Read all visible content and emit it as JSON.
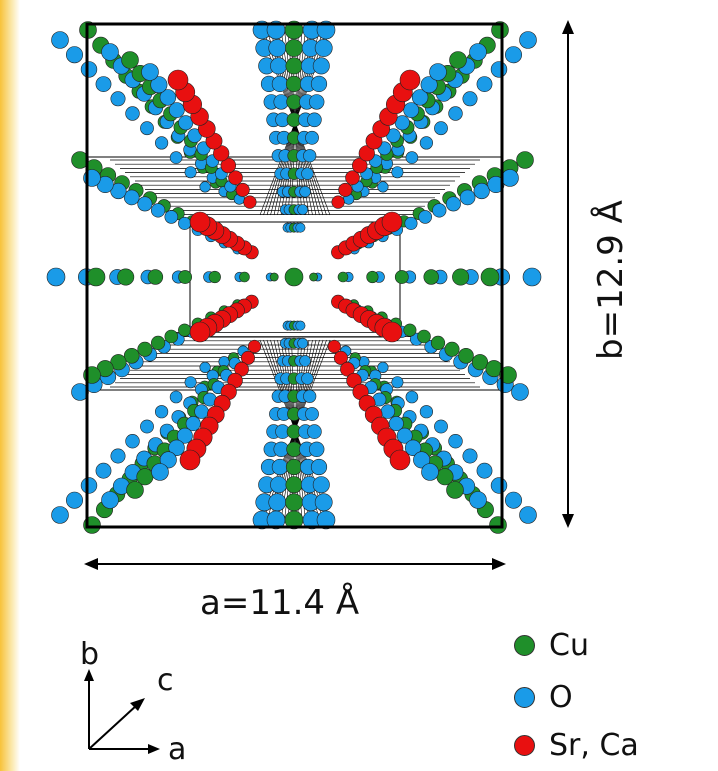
{
  "labels": {
    "a_dimension": "a=11.4 Å",
    "b_dimension": "b=12.9 Å"
  },
  "axes": {
    "b": "b",
    "c": "c",
    "a": "a"
  },
  "legend": [
    {
      "label": "Cu",
      "color": "#1f8f2a"
    },
    {
      "label": "O",
      "color": "#1a9be8"
    },
    {
      "label": "Sr, Ca",
      "color": "#e81010"
    }
  ],
  "colors": {
    "cu": "#1f8f2a",
    "o": "#1a9be8",
    "srca": "#e81010",
    "frame": "#000000",
    "background_accent": "#f8c23a"
  }
}
